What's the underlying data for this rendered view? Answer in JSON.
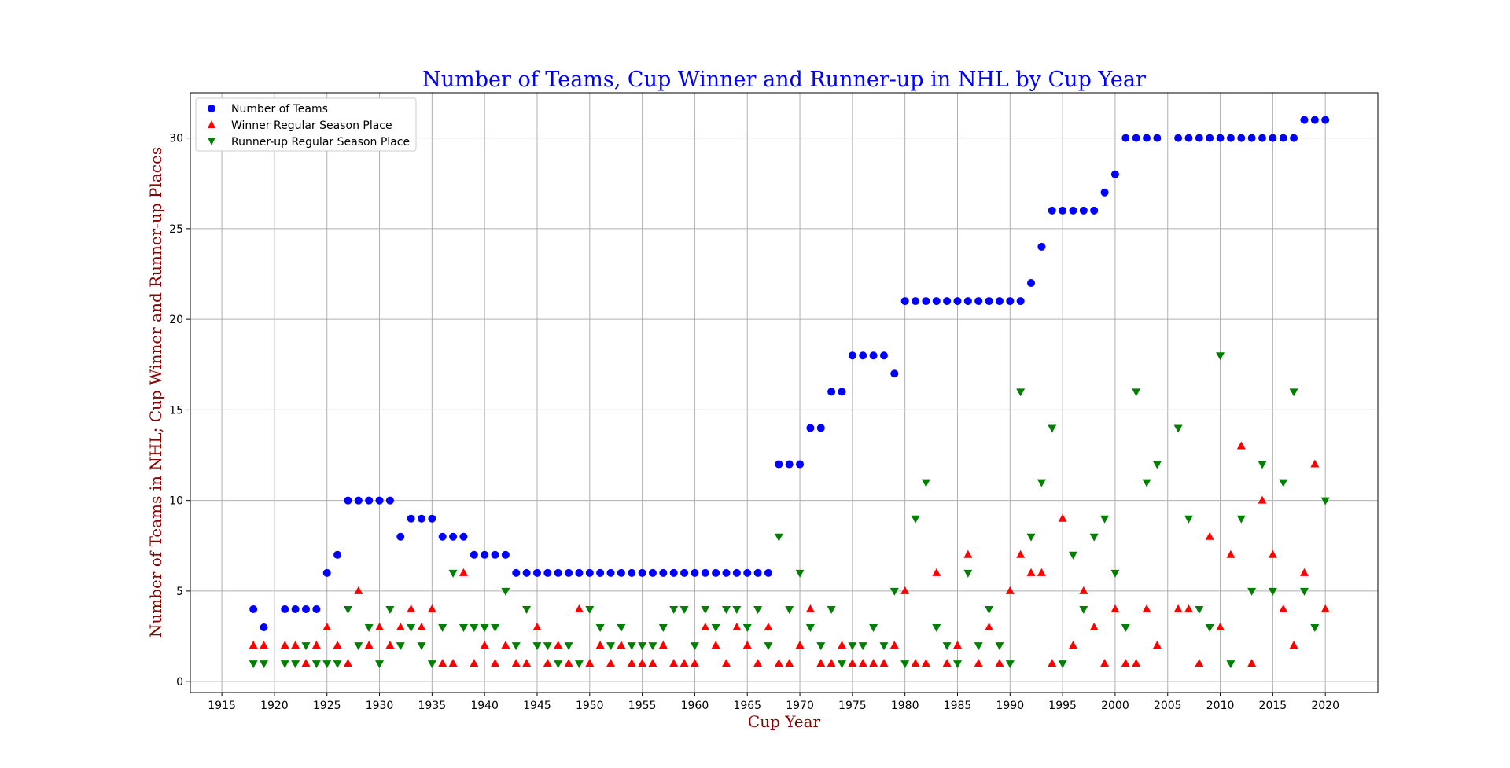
{
  "chart_data": {
    "type": "scatter",
    "title": "Number of Teams, Cup Winner and Runner-up in NHL by Cup Year",
    "xlabel": "Cup Year",
    "ylabel": "Number of Teams in NHL; Cup Winner and Runner-up Places",
    "xlim": [
      1912,
      2025
    ],
    "ylim": [
      -0.6,
      32.5
    ],
    "x_ticks": [
      1915,
      1920,
      1925,
      1930,
      1935,
      1940,
      1945,
      1950,
      1955,
      1960,
      1965,
      1970,
      1975,
      1980,
      1985,
      1990,
      1995,
      2000,
      2005,
      2010,
      2015,
      2020
    ],
    "y_ticks": [
      0,
      5,
      10,
      15,
      20,
      25,
      30
    ],
    "grid": true,
    "legend_position": "top-left",
    "colors": {
      "title": "#0000ff",
      "axis_label": "#8b0000",
      "teams": "#0000ff",
      "winner": "#ff0000",
      "runner_up": "#008000"
    },
    "x": [
      1918,
      1919,
      1921,
      1922,
      1923,
      1924,
      1925,
      1926,
      1927,
      1928,
      1929,
      1930,
      1931,
      1932,
      1933,
      1934,
      1935,
      1936,
      1937,
      1938,
      1939,
      1940,
      1941,
      1942,
      1943,
      1944,
      1945,
      1946,
      1947,
      1948,
      1949,
      1950,
      1951,
      1952,
      1953,
      1954,
      1955,
      1956,
      1957,
      1958,
      1959,
      1960,
      1961,
      1962,
      1963,
      1964,
      1965,
      1966,
      1967,
      1968,
      1969,
      1970,
      1971,
      1972,
      1973,
      1974,
      1975,
      1976,
      1977,
      1978,
      1979,
      1980,
      1981,
      1982,
      1983,
      1984,
      1985,
      1986,
      1987,
      1988,
      1989,
      1990,
      1991,
      1992,
      1993,
      1994,
      1995,
      1996,
      1997,
      1998,
      1999,
      2000,
      2001,
      2002,
      2003,
      2004,
      2006,
      2007,
      2008,
      2009,
      2010,
      2011,
      2012,
      2013,
      2014,
      2015,
      2016,
      2017,
      2018,
      2019,
      2020
    ],
    "series": [
      {
        "name": "Number of Teams",
        "marker": "circle",
        "values": [
          4,
          3,
          4,
          4,
          4,
          4,
          6,
          7,
          10,
          10,
          10,
          10,
          10,
          8,
          9,
          9,
          9,
          8,
          8,
          8,
          7,
          7,
          7,
          7,
          6,
          6,
          6,
          6,
          6,
          6,
          6,
          6,
          6,
          6,
          6,
          6,
          6,
          6,
          6,
          6,
          6,
          6,
          6,
          6,
          6,
          6,
          6,
          6,
          6,
          12,
          12,
          12,
          14,
          14,
          16,
          16,
          18,
          18,
          18,
          18,
          17,
          21,
          21,
          21,
          21,
          21,
          21,
          21,
          21,
          21,
          21,
          21,
          21,
          22,
          24,
          26,
          26,
          26,
          26,
          26,
          27,
          28,
          30,
          30,
          30,
          30,
          30,
          30,
          30,
          30,
          30,
          30,
          30,
          30,
          30,
          30,
          30,
          30,
          31,
          31,
          31
        ]
      },
      {
        "name": "Winner Regular Season Place",
        "marker": "triangle-up",
        "values": [
          2,
          2,
          2,
          2,
          1,
          2,
          3,
          2,
          1,
          5,
          2,
          3,
          2,
          3,
          4,
          3,
          4,
          1,
          1,
          6,
          1,
          2,
          1,
          2,
          1,
          1,
          3,
          1,
          2,
          1,
          4,
          1,
          2,
          1,
          2,
          1,
          1,
          1,
          2,
          1,
          1,
          1,
          3,
          2,
          1,
          3,
          2,
          1,
          3,
          1,
          1,
          2,
          4,
          1,
          1,
          2,
          1,
          1,
          1,
          1,
          2,
          5,
          1,
          1,
          6,
          1,
          2,
          7,
          1,
          3,
          1,
          5,
          7,
          6,
          6,
          1,
          9,
          2,
          5,
          3,
          1,
          4,
          1,
          1,
          4,
          2,
          4,
          4,
          1,
          8,
          3,
          7,
          13,
          1,
          10,
          7,
          4,
          2,
          6,
          12,
          4
        ]
      },
      {
        "name": "Runner-up Regular Season Place",
        "marker": "triangle-down",
        "values": [
          1,
          1,
          1,
          1,
          2,
          1,
          1,
          1,
          4,
          2,
          3,
          1,
          4,
          2,
          3,
          2,
          1,
          3,
          6,
          3,
          3,
          3,
          3,
          5,
          2,
          4,
          2,
          2,
          1,
          2,
          1,
          4,
          3,
          2,
          3,
          2,
          2,
          2,
          3,
          4,
          4,
          2,
          4,
          3,
          4,
          4,
          3,
          4,
          2,
          8,
          4,
          6,
          3,
          2,
          4,
          1,
          2,
          2,
          3,
          2,
          5,
          1,
          9,
          11,
          3,
          2,
          1,
          6,
          2,
          4,
          2,
          1,
          16,
          8,
          11,
          14,
          1,
          7,
          4,
          8,
          9,
          6,
          3,
          16,
          11,
          12,
          14,
          9,
          4,
          3,
          18,
          1,
          9,
          5,
          12,
          5,
          11,
          16,
          5,
          3,
          10
        ]
      }
    ]
  }
}
